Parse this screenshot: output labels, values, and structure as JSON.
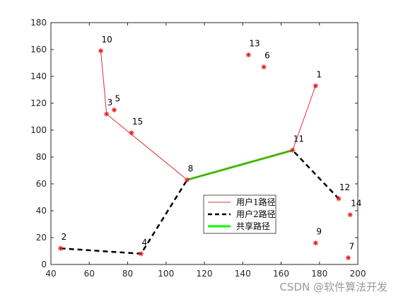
{
  "chart_data": {
    "type": "scatter",
    "xlim": [
      40,
      200
    ],
    "ylim": [
      0,
      180
    ],
    "xticks": [
      40,
      60,
      80,
      100,
      120,
      140,
      160,
      180,
      200
    ],
    "yticks": [
      0,
      20,
      40,
      60,
      80,
      100,
      120,
      140,
      160,
      180
    ],
    "grid": false,
    "points": [
      {
        "label": "1",
        "x": 178,
        "y": 133
      },
      {
        "label": "2",
        "x": 45,
        "y": 12
      },
      {
        "label": "3",
        "x": 69,
        "y": 112
      },
      {
        "label": "4",
        "x": 87,
        "y": 8
      },
      {
        "label": "5",
        "x": 73,
        "y": 115
      },
      {
        "label": "6",
        "x": 151,
        "y": 147
      },
      {
        "label": "7",
        "x": 195,
        "y": 5
      },
      {
        "label": "8",
        "x": 111,
        "y": 63
      },
      {
        "label": "9",
        "x": 178,
        "y": 16
      },
      {
        "label": "10",
        "x": 66,
        "y": 159
      },
      {
        "label": "11",
        "x": 166,
        "y": 85
      },
      {
        "label": "12",
        "x": 190,
        "y": 49
      },
      {
        "label": "13",
        "x": 143,
        "y": 156
      },
      {
        "label": "14",
        "x": 196,
        "y": 37
      },
      {
        "label": "15",
        "x": 82,
        "y": 98
      }
    ],
    "series": [
      {
        "name": "用户1路径",
        "color": "#e03030",
        "style": "solid",
        "x": [
          66,
          69,
          111,
          166,
          178
        ],
        "y": [
          159,
          112,
          63,
          85,
          133
        ]
      },
      {
        "name": "用户2路径",
        "color": "#000000",
        "style": "dashed",
        "x": [
          45,
          87,
          111,
          166,
          190
        ],
        "y": [
          12,
          8,
          63,
          85,
          49
        ]
      },
      {
        "name": "共享路径",
        "color": "#00ff00",
        "style": "solid",
        "x": [
          111,
          166
        ],
        "y": [
          63,
          85
        ]
      }
    ],
    "legend_position": "lower-center",
    "marker_color": "#e0191f"
  },
  "watermark": "CSDN @软件算法开发"
}
